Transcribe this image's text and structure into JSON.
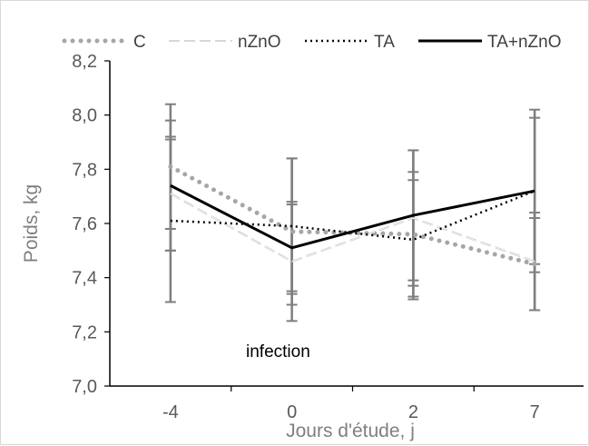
{
  "chart_data": {
    "type": "line",
    "x_categories": [
      "-4",
      "0",
      "2",
      "7"
    ],
    "xlabel": "Jours d'étude, j",
    "ylabel": "Poids, kg",
    "ylim": [
      7.0,
      8.2
    ],
    "y_ticks": [
      "7,0",
      "7,2",
      "7,4",
      "7,6",
      "7,8",
      "8,0",
      "8,2"
    ],
    "grid": false,
    "legend_position": "top",
    "annotation": "infection",
    "series": [
      {
        "name": "C",
        "values": [
          7.81,
          7.57,
          7.56,
          7.45
        ],
        "err": [
          0.23,
          0.27,
          0.23,
          0.17
        ],
        "color": "#a6a6a6",
        "style": "dotted-thick"
      },
      {
        "name": "nZnO",
        "values": [
          7.71,
          7.46,
          7.62,
          7.46
        ],
        "err": [
          0.21,
          0.22,
          0.25,
          0.18
        ],
        "color": "#bfbfbf",
        "style": "double-dashed"
      },
      {
        "name": "TA",
        "values": [
          7.61,
          7.59,
          7.54,
          7.72
        ],
        "err": [
          0.3,
          0.25,
          0.22,
          0.3
        ],
        "color": "#000000",
        "style": "dotted"
      },
      {
        "name": "TA+nZnO",
        "values": [
          7.74,
          7.51,
          7.63,
          7.72
        ],
        "err": [
          0.24,
          0.16,
          0.24,
          0.27
        ],
        "color": "#000000",
        "style": "solid"
      }
    ]
  }
}
